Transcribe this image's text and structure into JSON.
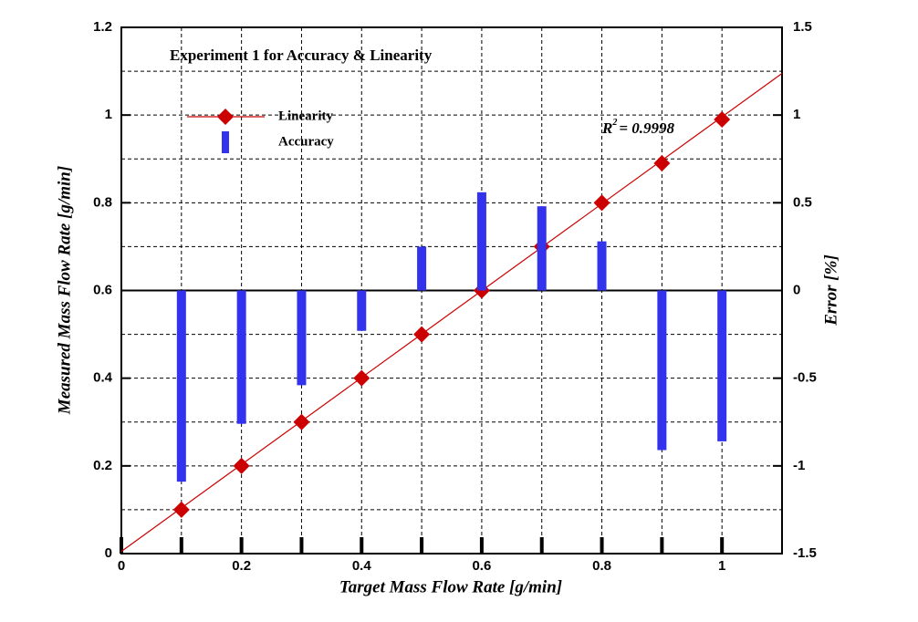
{
  "chart_data": {
    "type": "bar-scatter",
    "title": "Experiment 1 for Accuracy & Linearity",
    "x_label": "Target Mass Flow Rate [g/min]",
    "y_label": "Measured Mass Flow Rate [g/min]",
    "y2_label": "Error [%]",
    "annotation": {
      "base": "R",
      "sup": "2",
      "text": "= 0.9998"
    },
    "x": [
      0.1,
      0.2,
      0.3,
      0.4,
      0.5,
      0.6,
      0.7,
      0.8,
      0.9,
      1.0
    ],
    "series": [
      {
        "name": "Linearity",
        "color": "#cc0000",
        "marker": "diamond",
        "values": [
          0.1,
          0.2,
          0.3,
          0.4,
          0.5,
          0.6,
          0.7,
          0.8,
          0.89,
          0.99
        ]
      },
      {
        "name": "Accuracy",
        "color": "#3333ee",
        "marker": "bar",
        "axis": "y2",
        "values": [
          -1.09,
          -0.76,
          -0.54,
          -0.23,
          0.25,
          0.56,
          0.48,
          0.28,
          -0.91,
          -0.86
        ]
      }
    ],
    "fit_line": {
      "color": "#cc0000",
      "x": [
        0,
        1.1
      ],
      "values": [
        0.005,
        1.095
      ]
    },
    "xlim": [
      0,
      1.1
    ],
    "ylim": [
      0,
      1.2
    ],
    "y2lim": [
      -1.5,
      1.5
    ],
    "xticks": [
      0,
      0.2,
      0.4,
      0.6,
      0.8,
      1
    ],
    "yticks": [
      0,
      0.2,
      0.4,
      0.6,
      0.8,
      1,
      1.2
    ],
    "y2ticks": [
      -1.5,
      -1,
      -0.5,
      0,
      0.5,
      1,
      1.5
    ],
    "x_minor_grid": [
      0.1,
      0.3,
      0.5,
      0.7,
      0.9
    ],
    "y_minor_grid": [
      0.1,
      0.3,
      0.5,
      0.7,
      0.9,
      1.1
    ],
    "grid": true
  }
}
